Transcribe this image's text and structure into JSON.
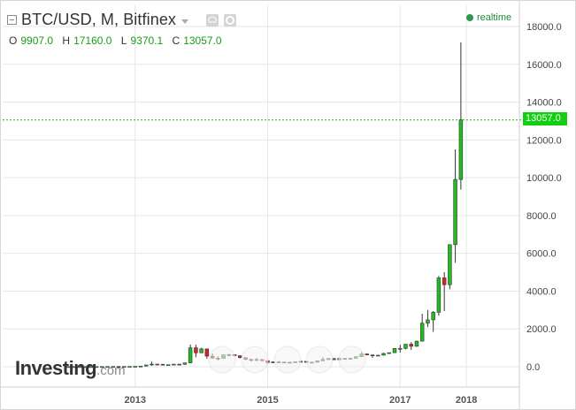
{
  "header": {
    "title": "BTC/USD, M, Bitfinex",
    "ohlc": [
      {
        "key": "O",
        "value": "9907.0"
      },
      {
        "key": "H",
        "value": "17160.0"
      },
      {
        "key": "L",
        "value": "9370.1"
      },
      {
        "key": "C",
        "value": "13057.0"
      }
    ],
    "realtime_label": "realtime"
  },
  "last_price_label": "13057.0",
  "logo": {
    "main": "Investing",
    "suffix": ".com"
  },
  "colors": {
    "up": "#22bb22",
    "down": "#dd2222",
    "last_line": "#22aa22",
    "grid": "#e6e6e6"
  },
  "chart_data": {
    "type": "candlestick",
    "title": "BTC/USD, M, Bitfinex",
    "ylim": [
      -1000,
      18500
    ],
    "y_ticks": [
      "0.0",
      "2000.0",
      "4000.0",
      "6000.0",
      "8000.0",
      "10000.0",
      "12000.0",
      "14000.0",
      "16000.0",
      "18000.0"
    ],
    "y_tick_values": [
      0,
      2000,
      4000,
      6000,
      8000,
      10000,
      12000,
      14000,
      16000,
      18000
    ],
    "x_ticks": [
      "2013",
      "2015",
      "2017",
      "2018"
    ],
    "x_tick_positions": [
      2013.0,
      2015.0,
      2017.0,
      2018.0
    ],
    "x_range": [
      2011.0,
      2018.8
    ],
    "last_close": 13057.0,
    "candles": [
      [
        2012.0,
        6,
        7,
        5,
        6
      ],
      [
        2012.083,
        6,
        6,
        4,
        5
      ],
      [
        2012.167,
        5,
        6,
        4,
        5
      ],
      [
        2012.25,
        5,
        6,
        4,
        5
      ],
      [
        2012.333,
        5,
        6,
        5,
        5
      ],
      [
        2012.417,
        5,
        7,
        5,
        6
      ],
      [
        2012.5,
        6,
        10,
        6,
        9
      ],
      [
        2012.583,
        9,
        15,
        7,
        10
      ],
      [
        2012.667,
        10,
        13,
        10,
        12
      ],
      [
        2012.75,
        12,
        13,
        10,
        11
      ],
      [
        2012.833,
        11,
        13,
        10,
        12
      ],
      [
        2012.917,
        12,
        14,
        12,
        13
      ],
      [
        2013.0,
        13,
        21,
        13,
        20
      ],
      [
        2013.083,
        20,
        34,
        20,
        33
      ],
      [
        2013.167,
        33,
        100,
        33,
        93
      ],
      [
        2013.25,
        93,
        266,
        50,
        139
      ],
      [
        2013.333,
        139,
        140,
        80,
        129
      ],
      [
        2013.417,
        129,
        130,
        90,
        97
      ],
      [
        2013.5,
        97,
        110,
        65,
        106
      ],
      [
        2013.583,
        106,
        140,
        100,
        135
      ],
      [
        2013.667,
        135,
        140,
        120,
        128
      ],
      [
        2013.75,
        128,
        210,
        100,
        205
      ],
      [
        2013.833,
        205,
        1175,
        200,
        1000
      ],
      [
        2013.917,
        1000,
        1165,
        500,
        735
      ],
      [
        2014.0,
        735,
        1000,
        750,
        940
      ],
      [
        2014.083,
        940,
        950,
        420,
        560
      ],
      [
        2014.167,
        560,
        700,
        450,
        450
      ],
      [
        2014.25,
        450,
        550,
        340,
        445
      ],
      [
        2014.333,
        445,
        630,
        430,
        628
      ],
      [
        2014.417,
        628,
        680,
        550,
        640
      ],
      [
        2014.5,
        640,
        660,
        560,
        580
      ],
      [
        2014.583,
        580,
        600,
        440,
        480
      ],
      [
        2014.667,
        480,
        500,
        350,
        386
      ],
      [
        2014.75,
        386,
        420,
        275,
        338
      ],
      [
        2014.833,
        338,
        460,
        320,
        378
      ],
      [
        2014.917,
        378,
        390,
        300,
        320
      ],
      [
        2015.0,
        320,
        320,
        160,
        217
      ],
      [
        2015.083,
        217,
        280,
        200,
        254
      ],
      [
        2015.167,
        254,
        300,
        230,
        244
      ],
      [
        2015.25,
        244,
        260,
        210,
        236
      ],
      [
        2015.333,
        236,
        250,
        225,
        230
      ],
      [
        2015.417,
        230,
        270,
        220,
        263
      ],
      [
        2015.5,
        263,
        315,
        250,
        284
      ],
      [
        2015.583,
        284,
        285,
        200,
        230
      ],
      [
        2015.667,
        230,
        250,
        225,
        236
      ],
      [
        2015.75,
        236,
        330,
        235,
        315
      ],
      [
        2015.833,
        315,
        500,
        300,
        378
      ],
      [
        2015.917,
        378,
        465,
        350,
        430
      ],
      [
        2016.0,
        430,
        460,
        350,
        368
      ],
      [
        2016.083,
        368,
        440,
        360,
        437
      ],
      [
        2016.167,
        437,
        440,
        400,
        416
      ],
      [
        2016.25,
        416,
        470,
        410,
        448
      ],
      [
        2016.333,
        448,
        550,
        440,
        531
      ],
      [
        2016.417,
        531,
        780,
        520,
        673
      ],
      [
        2016.5,
        673,
        700,
        600,
        624
      ],
      [
        2016.583,
        624,
        630,
        480,
        575
      ],
      [
        2016.667,
        575,
        620,
        560,
        608
      ],
      [
        2016.75,
        608,
        740,
        600,
        700
      ],
      [
        2016.833,
        700,
        750,
        680,
        742
      ],
      [
        2016.917,
        742,
        980,
        740,
        966
      ],
      [
        2017.0,
        966,
        1160,
        750,
        970
      ],
      [
        2017.083,
        970,
        1200,
        920,
        1190
      ],
      [
        2017.167,
        1190,
        1300,
        890,
        1080
      ],
      [
        2017.25,
        1080,
        1380,
        1050,
        1350
      ],
      [
        2017.333,
        1350,
        2800,
        1340,
        2300
      ],
      [
        2017.417,
        2300,
        3000,
        2100,
        2480
      ],
      [
        2017.5,
        2480,
        2950,
        1850,
        2880
      ],
      [
        2017.583,
        2880,
        4800,
        2700,
        4700
      ],
      [
        2017.667,
        4700,
        5000,
        2950,
        4340
      ],
      [
        2017.75,
        4340,
        6450,
        4100,
        6460
      ],
      [
        2017.833,
        6460,
        11500,
        5500,
        9907
      ],
      [
        2017.917,
        9907,
        17160,
        9370.1,
        13057
      ]
    ]
  }
}
